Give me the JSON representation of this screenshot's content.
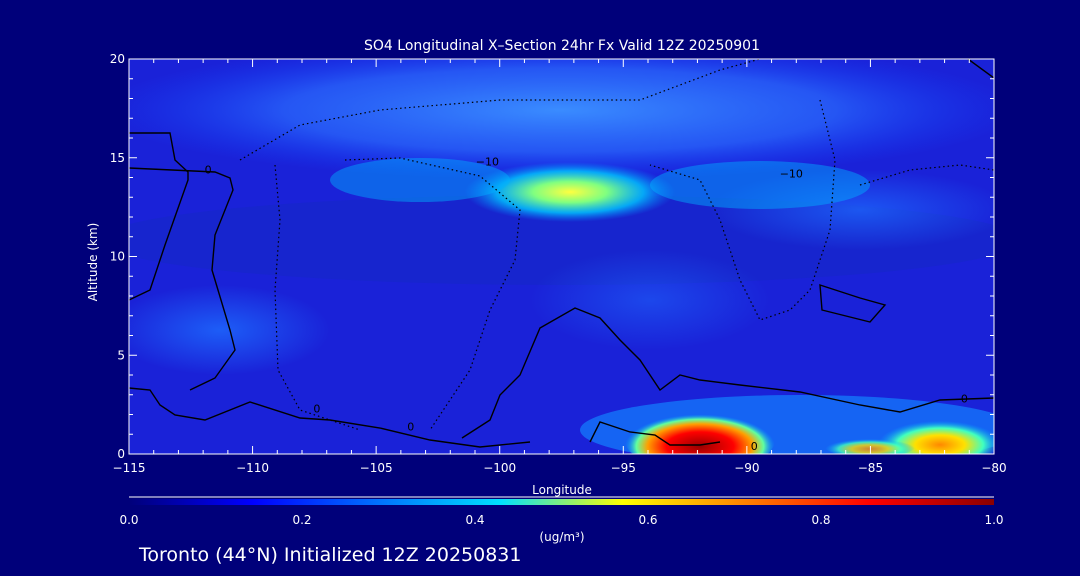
{
  "chart_data": {
    "type": "heatmap",
    "title": "SO4 Longitudinal X–Section 24hr  Fx Valid 12Z 20250901",
    "xlabel": "Longitude",
    "ylabel": "Altitude (km)",
    "xlim": [
      -115,
      -80
    ],
    "ylim": [
      0,
      20
    ],
    "x_ticks": [
      -115,
      -110,
      -105,
      -100,
      -95,
      -90,
      -85,
      -80
    ],
    "x_tick_labels": [
      "−115",
      "−110",
      "−105",
      "−100",
      "−95",
      "−90",
      "−85",
      "−80"
    ],
    "y_ticks": [
      0,
      5,
      10,
      15,
      20
    ],
    "y_tick_labels": [
      "0",
      "5",
      "10",
      "15",
      "20"
    ],
    "colorbar": {
      "min": 0.0,
      "max": 1.0,
      "ticks": [
        0.0,
        0.2,
        0.4,
        0.6,
        0.8,
        1.0
      ],
      "tick_labels": [
        "0.0",
        "0.2",
        "0.4",
        "0.6",
        "0.8",
        "1.0"
      ],
      "units": "(ug/m³)",
      "colors": [
        "#00007a",
        "#0000ff",
        "#0070ff",
        "#00e0ff",
        "#ffff00",
        "#ff8000",
        "#ff0000",
        "#8b0000"
      ]
    },
    "features": [
      {
        "name": "upper-band",
        "lon": [
          -113,
          -80
        ],
        "alt": [
          14.5,
          17.5
        ],
        "value": 0.18
      },
      {
        "name": "upper-maximum",
        "lon": [
          -102,
          -92
        ],
        "alt": [
          12.0,
          15.0
        ],
        "value": 0.55
      },
      {
        "name": "surface-maximum-west",
        "lon": [
          -93.5,
          -89
        ],
        "alt": [
          0,
          1.5
        ],
        "value": 1.0
      },
      {
        "name": "surface-maximum-east",
        "lon": [
          -85,
          -80
        ],
        "alt": [
          0,
          1.2
        ],
        "value": 0.65
      }
    ],
    "contour_labels": [
      {
        "text": "0",
        "lon": -111.8,
        "alt": 14.2
      },
      {
        "text": "−10",
        "lon": -100.5,
        "alt": 14.6
      },
      {
        "text": "−10",
        "lon": -88.2,
        "alt": 14.0
      },
      {
        "text": "0",
        "lon": -107.4,
        "alt": 2.1
      },
      {
        "text": "0",
        "lon": -103.6,
        "alt": 1.2
      },
      {
        "text": "0",
        "lon": -89.7,
        "alt": 0.2
      },
      {
        "text": "0",
        "lon": -81.2,
        "alt": 2.6
      }
    ],
    "subtitle": "Toronto (44°N) Initialized 12Z 20250831"
  }
}
